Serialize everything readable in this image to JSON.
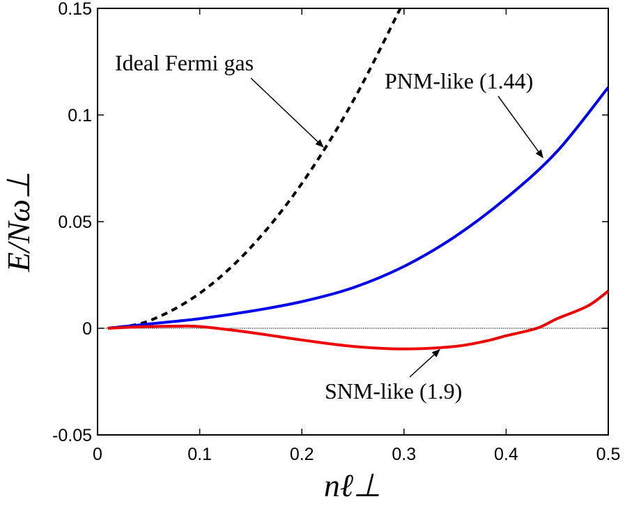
{
  "chart_data": {
    "type": "line",
    "title": "",
    "xlabel": "nℓ⊥",
    "ylabel": "E/Nω⊥",
    "xlim": [
      0,
      0.5
    ],
    "ylim": [
      -0.05,
      0.15
    ],
    "x_ticks": [
      0,
      0.1,
      0.2,
      0.3,
      0.4,
      0.5
    ],
    "x_tick_labels": [
      "0",
      "0.1",
      "0.2",
      "0.3",
      "0.4",
      "0.5"
    ],
    "y_ticks": [
      -0.05,
      0,
      0.05,
      0.1,
      0.15
    ],
    "y_tick_labels": [
      "-0.05",
      "0",
      "0.05",
      "0.1",
      "0.15"
    ],
    "grid": false,
    "reference_line": {
      "y": 0,
      "style": "dotted",
      "color": "#000000"
    },
    "series": [
      {
        "name": "Ideal Fermi gas",
        "color": "#000000",
        "style": "dashed",
        "x": [
          0.01,
          0.05,
          0.1,
          0.15,
          0.2,
          0.25,
          0.3
        ],
        "y": [
          0.0,
          0.0034,
          0.0164,
          0.0379,
          0.0679,
          0.1064,
          0.1534
        ]
      },
      {
        "name": "PNM-like (1.44)",
        "color": "#0000ee",
        "style": "solid",
        "x": [
          0.01,
          0.05,
          0.1,
          0.15,
          0.2,
          0.25,
          0.3,
          0.35,
          0.4,
          0.45,
          0.5
        ],
        "y": [
          0.0,
          0.002,
          0.0045,
          0.008,
          0.0125,
          0.019,
          0.029,
          0.043,
          0.061,
          0.083,
          0.113
        ]
      },
      {
        "name": "SNM-like (1.9)",
        "color": "#ee0000",
        "style": "solid",
        "x": [
          0.01,
          0.05,
          0.08,
          0.1,
          0.15,
          0.2,
          0.25,
          0.3,
          0.35,
          0.38,
          0.4,
          0.43,
          0.45,
          0.48,
          0.5
        ],
        "y": [
          0.0,
          0.0008,
          0.001,
          0.0008,
          -0.002,
          -0.0055,
          -0.0085,
          -0.0097,
          -0.0085,
          -0.006,
          -0.0035,
          0.0,
          0.0045,
          0.0105,
          0.0175
        ]
      }
    ],
    "annotations": [
      {
        "text": "Ideal Fermi gas",
        "arrow_to": [
          0.221,
          0.085
        ]
      },
      {
        "text": "PNM-like (1.44)",
        "arrow_to": [
          0.436,
          0.08
        ]
      },
      {
        "text": "SNM-like (1.9)",
        "arrow_to": [
          0.335,
          -0.01
        ]
      }
    ]
  }
}
